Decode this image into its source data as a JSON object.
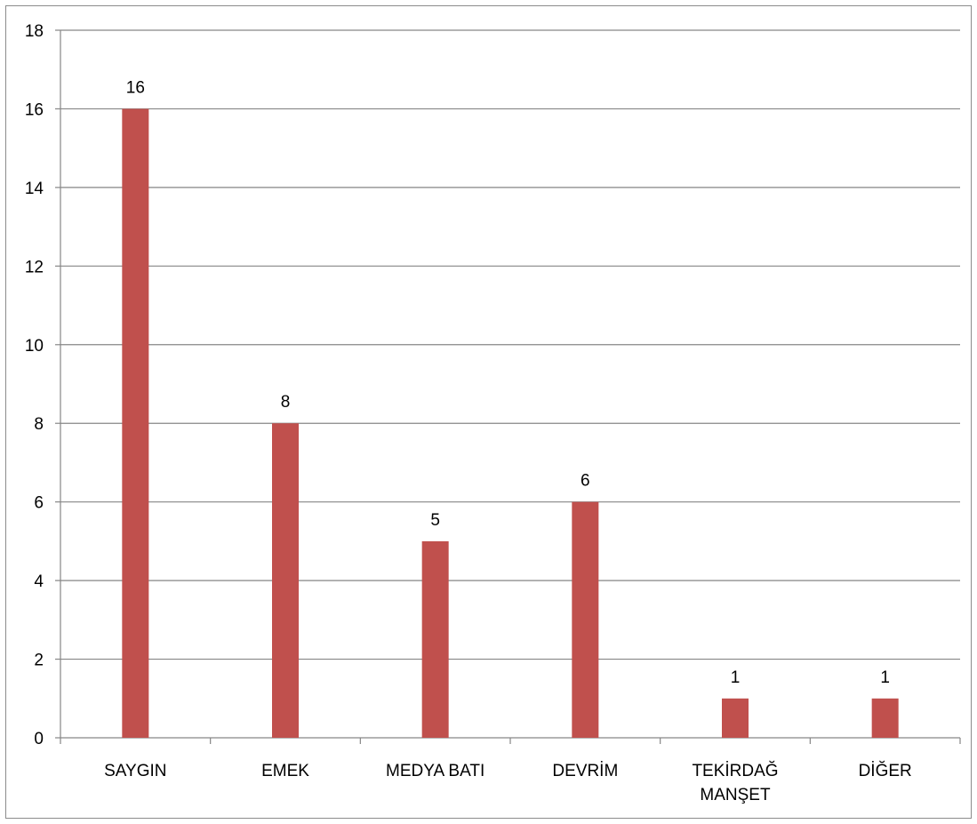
{
  "chart_data": {
    "type": "bar",
    "categories": [
      [
        "SAYGIN"
      ],
      [
        "EMEK"
      ],
      [
        "MEDYA BATI"
      ],
      [
        "DEVRİM"
      ],
      [
        "TEKİRDAĞ",
        "MANŞET"
      ],
      [
        "DİĞER"
      ]
    ],
    "values": [
      16,
      8,
      5,
      6,
      1,
      1
    ],
    "data_labels": [
      "16",
      "8",
      "5",
      "6",
      "1",
      "1"
    ],
    "ylim": [
      0,
      18
    ],
    "yticks": [
      0,
      2,
      4,
      6,
      8,
      10,
      12,
      14,
      16,
      18
    ],
    "ytick_labels": [
      "0",
      "2",
      "4",
      "6",
      "8",
      "10",
      "12",
      "14",
      "16",
      "18"
    ],
    "grid": true,
    "legend": "none",
    "title": "",
    "xlabel": "",
    "ylabel": "",
    "colors": {
      "bar": "#c0504d",
      "grid": "#868686",
      "axis": "#868686",
      "frame": "#8c8c8c"
    }
  }
}
